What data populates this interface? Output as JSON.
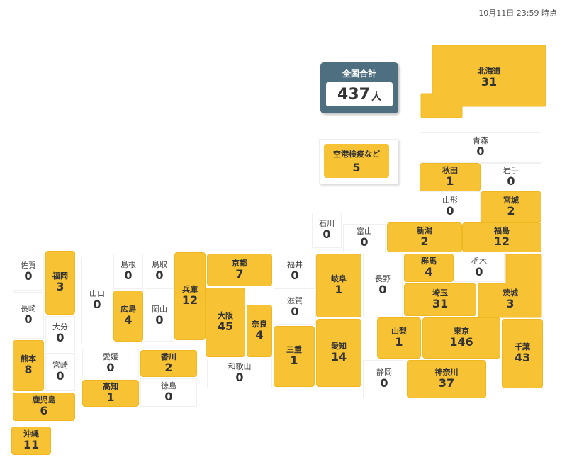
{
  "timestamp": "10月11日 23:59 時点",
  "total": {
    "label": "全国合計",
    "value": "437",
    "unit": "人"
  },
  "airport": {
    "label": "空港検疫など",
    "value": "5"
  },
  "colors": {
    "highlight": "#f7c234",
    "total_box": "#4d6f7f",
    "empty": "#ffffff"
  },
  "prefectures": {
    "hokkaido": {
      "name": "北海道",
      "value": "31"
    },
    "aomori": {
      "name": "青森",
      "value": "0"
    },
    "akita": {
      "name": "秋田",
      "value": "1"
    },
    "iwate": {
      "name": "岩手",
      "value": "0"
    },
    "yamagata": {
      "name": "山形",
      "value": "0"
    },
    "miyagi": {
      "name": "宮城",
      "value": "2"
    },
    "niigata": {
      "name": "新潟",
      "value": "2"
    },
    "fukushima": {
      "name": "福島",
      "value": "12"
    },
    "ishikawa": {
      "name": "石川",
      "value": "0"
    },
    "toyama": {
      "name": "富山",
      "value": "0"
    },
    "fukui": {
      "name": "福井",
      "value": "0"
    },
    "gifu": {
      "name": "岐阜",
      "value": "1"
    },
    "nagano": {
      "name": "長野",
      "value": "0"
    },
    "gunma": {
      "name": "群馬",
      "value": "4"
    },
    "tochigi": {
      "name": "栃木",
      "value": "0"
    },
    "saitama": {
      "name": "埼玉",
      "value": "31"
    },
    "ibaraki": {
      "name": "茨城",
      "value": "3"
    },
    "shiga": {
      "name": "滋賀",
      "value": "0"
    },
    "aichi": {
      "name": "愛知",
      "value": "14"
    },
    "yamanashi": {
      "name": "山梨",
      "value": "1"
    },
    "tokyo": {
      "name": "東京",
      "value": "146"
    },
    "chiba": {
      "name": "千葉",
      "value": "43"
    },
    "shizuoka": {
      "name": "静岡",
      "value": "0"
    },
    "kanagawa": {
      "name": "神奈川",
      "value": "37"
    },
    "kyoto": {
      "name": "京都",
      "value": "7"
    },
    "osaka": {
      "name": "大阪",
      "value": "45"
    },
    "nara": {
      "name": "奈良",
      "value": "4"
    },
    "mie": {
      "name": "三重",
      "value": "1"
    },
    "wakayama": {
      "name": "和歌山",
      "value": "0"
    },
    "hyogo": {
      "name": "兵庫",
      "value": "12"
    },
    "tottori": {
      "name": "鳥取",
      "value": "0"
    },
    "shimane": {
      "name": "島根",
      "value": "0"
    },
    "okayama": {
      "name": "岡山",
      "value": "0"
    },
    "hiroshima": {
      "name": "広島",
      "value": "4"
    },
    "yamaguchi": {
      "name": "山口",
      "value": "0"
    },
    "kagawa": {
      "name": "香川",
      "value": "2"
    },
    "ehime": {
      "name": "愛媛",
      "value": "0"
    },
    "tokushima": {
      "name": "徳島",
      "value": "0"
    },
    "kochi": {
      "name": "高知",
      "value": "1"
    },
    "fukuoka": {
      "name": "福岡",
      "value": "3"
    },
    "saga": {
      "name": "佐賀",
      "value": "0"
    },
    "nagasaki": {
      "name": "長崎",
      "value": "0"
    },
    "oita": {
      "name": "大分",
      "value": "0"
    },
    "kumamoto": {
      "name": "熊本",
      "value": "8"
    },
    "miyazaki": {
      "name": "宮崎",
      "value": "0"
    },
    "kagoshima": {
      "name": "鹿児島",
      "value": "6"
    },
    "okinawa": {
      "name": "沖縄",
      "value": "11"
    }
  }
}
